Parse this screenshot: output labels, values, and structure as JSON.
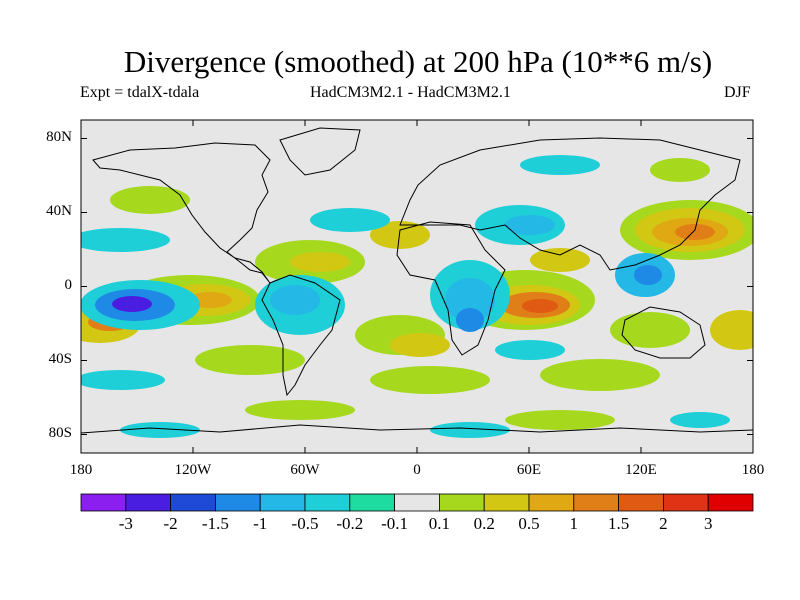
{
  "title": "Divergence (smoothed) at 200 hPa (10**6 m/s)",
  "subtitle_left": "Expt = tdalX-tdala",
  "subtitle_center": "HadCM3M2.1 - HadCM3M2.1",
  "subtitle_right": "DJF",
  "y_axis": {
    "ticks": [
      "80N",
      "40N",
      "0",
      "40S",
      "80S"
    ],
    "values": [
      80,
      40,
      0,
      -40,
      -80
    ]
  },
  "x_axis": {
    "ticks": [
      "180",
      "120W",
      "60W",
      "0",
      "60E",
      "120E",
      "180"
    ],
    "values": [
      -180,
      -120,
      -60,
      0,
      60,
      120,
      180
    ]
  },
  "colorbar": {
    "labels": [
      "-3",
      "-2",
      "-1.5",
      "-1",
      "-0.5",
      "-0.2",
      "-0.1",
      "0.1",
      "0.2",
      "0.5",
      "1",
      "1.5",
      "2",
      "3"
    ],
    "colors": [
      "#8a1ff0",
      "#4a1ee0",
      "#1f4ad8",
      "#1e8ae6",
      "#23b8e6",
      "#1ecfd8",
      "#1edba0",
      "#e6e6e6",
      "#a6d81e",
      "#d2c814",
      "#e0a812",
      "#e07e18",
      "#e05a14",
      "#e03214",
      "#e00000"
    ]
  },
  "colors": {
    "land_fill": "#e6e6e6",
    "coast": "#000000"
  }
}
